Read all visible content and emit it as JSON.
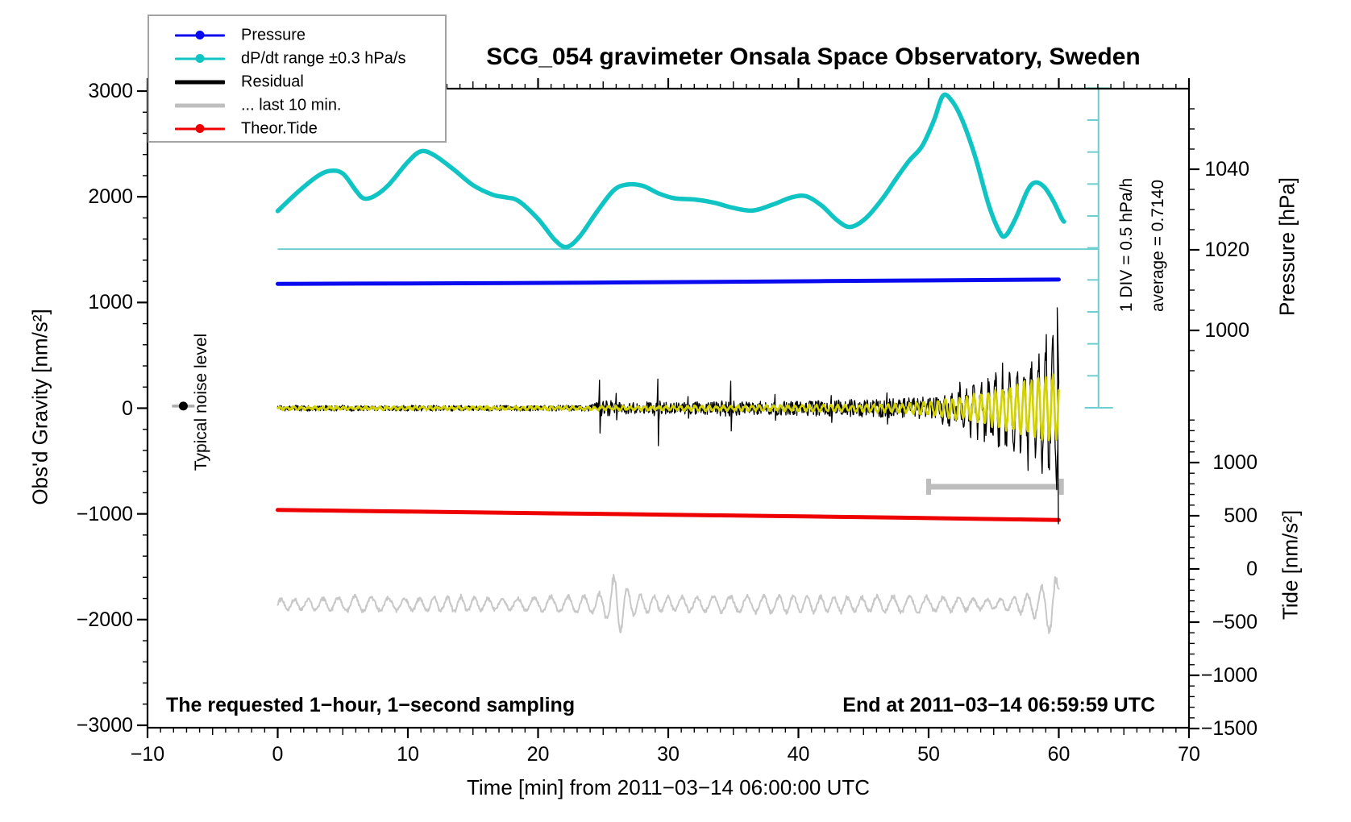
{
  "title": "SCG_054 gravimeter Onsala Space Observatory, Sweden",
  "legend": {
    "entries": [
      {
        "label": "Pressure",
        "color": "#0a0aef",
        "style": "line-dot",
        "thickness": 3
      },
      {
        "label": "dP/dt range ±0.3 hPa/s",
        "color": "#10c4c4",
        "style": "line-dot",
        "thickness": 3
      },
      {
        "label": "Residual",
        "color": "#000000",
        "style": "line",
        "thickness": 5
      },
      {
        "label": "... last 10 min.",
        "color": "#bfbfbf",
        "style": "line",
        "thickness": 5
      },
      {
        "label": "Theor.Tide",
        "color": "#ee0000",
        "style": "line-dot",
        "thickness": 3
      }
    ]
  },
  "annotations": {
    "bottom_left": "The requested 1−hour, 1−second sampling",
    "bottom_right": "End at 2011−03−14 06:59:59 UTC",
    "noise_label": "Typical noise level",
    "div_label": "1 DIV = 0.5 hPa/h",
    "average_label": "average = 0.7140"
  },
  "chart_data": {
    "type": "line",
    "title": "SCG_054 gravimeter Onsala Space Observatory, Sweden",
    "axes": {
      "x": {
        "label": "Time [min] from 2011−03−14 06:00:00 UTC",
        "range": [
          -10,
          70
        ],
        "major_tick": 10,
        "medium_tick": 5,
        "minor_tick": 1,
        "ticks": [
          {
            "v": -10,
            "label": "−10"
          },
          {
            "v": 0,
            "label": "0"
          },
          {
            "v": 10,
            "label": "10"
          },
          {
            "v": 20,
            "label": "20"
          },
          {
            "v": 30,
            "label": "30"
          },
          {
            "v": 40,
            "label": "40"
          },
          {
            "v": 50,
            "label": "50"
          },
          {
            "v": 60,
            "label": "60"
          },
          {
            "v": 70,
            "label": "70"
          }
        ]
      },
      "y_left": {
        "label": "Obs'd Gravity [nm/s²]",
        "range": [
          -3023,
          3023
        ],
        "major_tick": 1000,
        "minor_tick": 200,
        "ticks": [
          {
            "v": -3000,
            "label": "−3000"
          },
          {
            "v": -2000,
            "label": "−2000"
          },
          {
            "v": -1000,
            "label": "−1000"
          },
          {
            "v": 0,
            "label": "0"
          },
          {
            "v": 1000,
            "label": "1000"
          },
          {
            "v": 2000,
            "label": "2000"
          },
          {
            "v": 3000,
            "label": "3000"
          }
        ]
      },
      "y_right_pressure": {
        "label": "Pressure [hPa]",
        "minor_tick_hpa": 5,
        "ticks": [
          {
            "v": 1000,
            "label": "1000"
          },
          {
            "v": 1020,
            "label": "1020"
          },
          {
            "v": 1040,
            "label": "1040"
          }
        ]
      },
      "y_right_tide": {
        "label": "Tide [nm/s²]",
        "minor_tick": 100,
        "ticks": [
          {
            "v": 1000,
            "label": "1000"
          },
          {
            "v": 500,
            "label": "500"
          },
          {
            "v": 0,
            "label": "0"
          },
          {
            "v": -500,
            "label": "−500"
          },
          {
            "v": -1000,
            "label": "−1000"
          },
          {
            "v": -1500,
            "label": "−1500"
          }
        ]
      }
    },
    "series": {
      "dpdt": {
        "name": "dP/dt range ±0.3 hPa/s",
        "color": "#10c4c4",
        "axis": "gravity",
        "stroke": 5.5,
        "units_note": "drawn against left axis units on its own DIV scale",
        "points": [
          [
            0,
            1865
          ],
          [
            1.5,
            2040
          ],
          [
            3,
            2190
          ],
          [
            4,
            2245
          ],
          [
            5,
            2220
          ],
          [
            6,
            2060
          ],
          [
            6.6,
            1985
          ],
          [
            7.4,
            2005
          ],
          [
            8.5,
            2110
          ],
          [
            10,
            2330
          ],
          [
            11,
            2430
          ],
          [
            12,
            2395
          ],
          [
            13.5,
            2260
          ],
          [
            15,
            2110
          ],
          [
            16.5,
            2020
          ],
          [
            17.5,
            1995
          ],
          [
            18.5,
            1960
          ],
          [
            20,
            1790
          ],
          [
            21.3,
            1590
          ],
          [
            22.2,
            1525
          ],
          [
            23.2,
            1625
          ],
          [
            24.5,
            1855
          ],
          [
            25.8,
            2060
          ],
          [
            26.8,
            2115
          ],
          [
            28,
            2105
          ],
          [
            29.3,
            2030
          ],
          [
            30.5,
            1985
          ],
          [
            32,
            1975
          ],
          [
            33.5,
            1945
          ],
          [
            35,
            1895
          ],
          [
            36.5,
            1870
          ],
          [
            38,
            1925
          ],
          [
            39.5,
            1995
          ],
          [
            40.6,
            2005
          ],
          [
            41.8,
            1915
          ],
          [
            43,
            1775
          ],
          [
            44,
            1715
          ],
          [
            45.2,
            1800
          ],
          [
            46.5,
            1990
          ],
          [
            47.5,
            2170
          ],
          [
            48.5,
            2340
          ],
          [
            49.5,
            2480
          ],
          [
            50.4,
            2720
          ],
          [
            51.1,
            2955
          ],
          [
            51.8,
            2905
          ],
          [
            52.6,
            2720
          ],
          [
            53.6,
            2370
          ],
          [
            54.6,
            1930
          ],
          [
            55.4,
            1680
          ],
          [
            55.9,
            1630
          ],
          [
            56.7,
            1800
          ],
          [
            57.6,
            2060
          ],
          [
            58.2,
            2135
          ],
          [
            58.9,
            2090
          ],
          [
            59.6,
            1955
          ],
          [
            60.2,
            1800
          ],
          [
            60.4,
            1765
          ]
        ]
      },
      "dpdt_ref_line": {
        "name": "dP/dt reference line",
        "color": "#6fcfcf",
        "axis": "gravity",
        "stroke": 2,
        "value": 1505,
        "t_start": 0,
        "t_end": 63.05
      },
      "pressure": {
        "name": "Pressure",
        "color": "#0a0aef",
        "axis": "pressure",
        "stroke": 5,
        "points": [
          [
            0,
            1011.55
          ],
          [
            6,
            1011.62
          ],
          [
            12,
            1011.68
          ],
          [
            18,
            1011.76
          ],
          [
            24,
            1011.86
          ],
          [
            30,
            1011.97
          ],
          [
            36,
            1012.1
          ],
          [
            42,
            1012.24
          ],
          [
            48,
            1012.38
          ],
          [
            54,
            1012.5
          ],
          [
            60,
            1012.62
          ]
        ]
      },
      "theor_tide": {
        "name": "Theor.Tide",
        "color": "#ee0000",
        "axis": "gravity",
        "stroke": 5,
        "points": [
          [
            0,
            -963
          ],
          [
            6,
            -972
          ],
          [
            12,
            -981
          ],
          [
            18,
            -990
          ],
          [
            24,
            -999
          ],
          [
            30,
            -1008
          ],
          [
            36,
            -1017
          ],
          [
            42,
            -1026
          ],
          [
            48,
            -1036
          ],
          [
            54,
            -1047
          ],
          [
            60,
            -1058
          ]
        ]
      },
      "residual": {
        "name": "Residual",
        "color": "#000000",
        "axis": "gravity",
        "stroke": 1.3,
        "baseline": 0,
        "noise_envelope": [
          [
            0,
            27
          ],
          [
            24,
            27
          ],
          [
            24.4,
            50
          ],
          [
            25,
            95
          ],
          [
            26,
            60
          ],
          [
            28,
            52
          ],
          [
            29,
            75
          ],
          [
            30,
            58
          ],
          [
            33,
            60
          ],
          [
            34.6,
            80
          ],
          [
            36,
            62
          ],
          [
            40,
            72
          ],
          [
            44,
            82
          ],
          [
            48,
            95
          ],
          [
            50,
            110
          ],
          [
            52,
            118
          ],
          [
            54,
            128
          ],
          [
            56,
            138
          ],
          [
            58,
            148
          ],
          [
            60,
            155
          ]
        ],
        "osc_envelope": [
          [
            0,
            0
          ],
          [
            50,
            0
          ],
          [
            51,
            60
          ],
          [
            52,
            140
          ],
          [
            53,
            200
          ],
          [
            54,
            260
          ],
          [
            55,
            330
          ],
          [
            56,
            400
          ],
          [
            57,
            480
          ],
          [
            58,
            580
          ],
          [
            59,
            700
          ],
          [
            59.6,
            800
          ],
          [
            60,
            860
          ]
        ],
        "osc_period_min": 0.55,
        "spikes": [
          [
            24.7,
            265,
            -235
          ],
          [
            26.0,
            140,
            -110
          ],
          [
            29.2,
            275,
            -355
          ],
          [
            31.5,
            110,
            -95
          ],
          [
            34.8,
            255,
            -215
          ],
          [
            38.2,
            130,
            -115
          ],
          [
            42.5,
            120,
            -135
          ],
          [
            46.8,
            145,
            -150
          ]
        ],
        "end_spike": [
          [
            59.88,
            950
          ],
          [
            59.97,
            -1094
          ]
        ]
      },
      "residual_recent_overlay": {
        "name": "Residual recent overlay",
        "color": "#d2d200",
        "axis": "gravity",
        "stroke": 2.6,
        "period_min": 0.55,
        "amp_envelope": [
          [
            0,
            13
          ],
          [
            20,
            13
          ],
          [
            30,
            19
          ],
          [
            40,
            27
          ],
          [
            45,
            34
          ],
          [
            48,
            44
          ],
          [
            50,
            68
          ],
          [
            52,
            103
          ],
          [
            54,
            148
          ],
          [
            55,
            178
          ],
          [
            56,
            212
          ],
          [
            57,
            250
          ],
          [
            58,
            290
          ],
          [
            59,
            322
          ],
          [
            60,
            340
          ]
        ]
      },
      "last10_bar": {
        "name": "... last 10 min. range bar",
        "color": "#bdbdbd",
        "axis": "gravity",
        "stroke": 7,
        "t_start": 50,
        "t_end": 60.2,
        "value": -743
      },
      "last10_trace": {
        "name": "... last 10 min. scaled trace",
        "color": "#c8c8c8",
        "axis": "gravity",
        "stroke": 2,
        "center": -1855,
        "period_min": 1.15,
        "amp_envelope": [
          [
            0,
            55
          ],
          [
            4,
            65
          ],
          [
            6,
            85
          ],
          [
            8,
            70
          ],
          [
            10,
            62
          ],
          [
            12,
            75
          ],
          [
            14,
            85
          ],
          [
            16,
            65
          ],
          [
            18,
            62
          ],
          [
            20,
            75
          ],
          [
            22,
            85
          ],
          [
            24,
            95
          ],
          [
            25.3,
            150
          ],
          [
            25.9,
            330
          ],
          [
            26.3,
            340
          ],
          [
            26.9,
            160
          ],
          [
            27.6,
            110
          ],
          [
            29,
            85
          ],
          [
            31,
            75
          ],
          [
            33,
            85
          ],
          [
            35,
            90
          ],
          [
            37,
            85
          ],
          [
            39,
            95
          ],
          [
            41,
            85
          ],
          [
            43,
            80
          ],
          [
            45,
            75
          ],
          [
            47,
            85
          ],
          [
            49,
            90
          ],
          [
            51,
            75
          ],
          [
            53,
            65
          ],
          [
            54.5,
            55
          ],
          [
            56,
            65
          ],
          [
            57,
            90
          ],
          [
            58,
            130
          ],
          [
            58.8,
            200
          ],
          [
            59.3,
            330
          ],
          [
            59.7,
            300
          ],
          [
            60,
            250
          ]
        ]
      },
      "noise_marker": {
        "name": "Typical noise level marker",
        "color": "#000000",
        "bar_color": "#ababab",
        "t": -7.25,
        "value": 20
      },
      "div_scale": {
        "name": "1 DIV = 0.5 hPa/h scale",
        "color": "#6fcfcf",
        "stroke": 2,
        "t": 63.05,
        "v_top": 3028,
        "v_bottom": 4,
        "divisions": 10
      }
    }
  }
}
